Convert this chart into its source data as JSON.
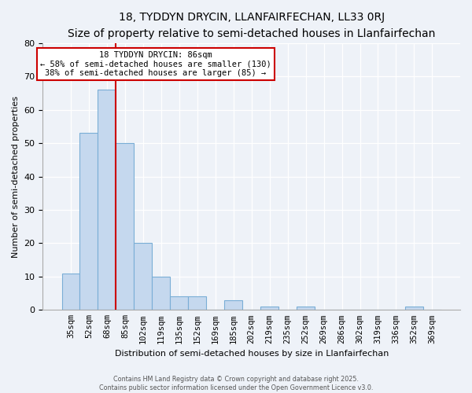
{
  "title": "18, TYDDYN DRYCIN, LLANFAIRFECHAN, LL33 0RJ",
  "subtitle": "Size of property relative to semi-detached houses in Llanfairfechan",
  "xlabel": "Distribution of semi-detached houses by size in Llanfairfechan",
  "ylabel": "Number of semi-detached properties",
  "categories": [
    "35sqm",
    "52sqm",
    "68sqm",
    "85sqm",
    "102sqm",
    "119sqm",
    "135sqm",
    "152sqm",
    "169sqm",
    "185sqm",
    "202sqm",
    "219sqm",
    "235sqm",
    "252sqm",
    "269sqm",
    "286sqm",
    "302sqm",
    "319sqm",
    "336sqm",
    "352sqm",
    "369sqm"
  ],
  "values": [
    11,
    53,
    66,
    50,
    20,
    10,
    4,
    4,
    0,
    3,
    0,
    1,
    0,
    1,
    0,
    0,
    0,
    0,
    0,
    1,
    0
  ],
  "annotation_title": "18 TYDDYN DRYCIN: 86sqm",
  "annotation_line1": "← 58% of semi-detached houses are smaller (130)",
  "annotation_line2": "38% of semi-detached houses are larger (85) →",
  "vline_color": "#cc0000",
  "vline_at_index": 2,
  "ylim": [
    0,
    80
  ],
  "yticks": [
    0,
    10,
    20,
    30,
    40,
    50,
    60,
    70,
    80
  ],
  "footer1": "Contains HM Land Registry data © Crown copyright and database right 2025.",
  "footer2": "Contains public sector information licensed under the Open Government Licence v3.0.",
  "bg_color": "#eef2f8",
  "bar_face_color": "#c5d8ee",
  "bar_edge_color": "#7aaed6",
  "title_fontsize": 10,
  "subtitle_fontsize": 9,
  "xlabel_fontsize": 8,
  "ylabel_fontsize": 8,
  "tick_fontsize": 7.5,
  "annotation_fontsize": 7.5
}
